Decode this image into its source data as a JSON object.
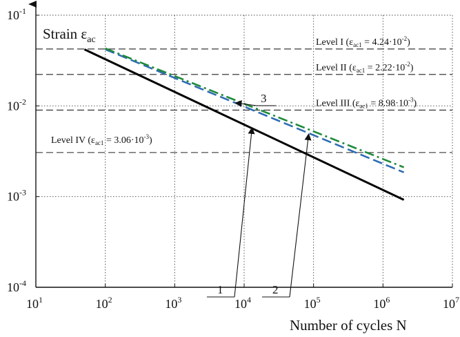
{
  "chart_data": {
    "type": "line",
    "x_scale": "log",
    "y_scale": "log",
    "xlim": [
      10,
      10000000
    ],
    "ylim": [
      0.0001,
      0.1
    ],
    "grid": true,
    "ylabel": {
      "main": "Strain ε",
      "sub": "ac"
    },
    "xlabel": "Number of cycles N",
    "x_ticks": [
      {
        "base": "10",
        "exp": "1",
        "value": 10
      },
      {
        "base": "10",
        "exp": "2",
        "value": 100
      },
      {
        "base": "10",
        "exp": "3",
        "value": 1000
      },
      {
        "base": "10",
        "exp": "4",
        "value": 10000
      },
      {
        "base": "10",
        "exp": "5",
        "value": 100000
      },
      {
        "base": "10",
        "exp": "6",
        "value": 1000000
      },
      {
        "base": "10",
        "exp": "7",
        "value": 10000000
      }
    ],
    "y_ticks": [
      {
        "base": "10",
        "exp": "-1",
        "value": 0.1
      },
      {
        "base": "10",
        "exp": "-2",
        "value": 0.01
      },
      {
        "base": "10",
        "exp": "-3",
        "value": 0.001
      },
      {
        "base": "10",
        "exp": "-4",
        "value": 0.0001
      }
    ],
    "series": [
      {
        "callout": "1",
        "color": "#000000",
        "style": "solid",
        "x": [
          50,
          2000000
        ],
        "y": [
          0.042,
          0.00092
        ]
      },
      {
        "callout": "2",
        "color": "#2e6db4",
        "style": "dashed",
        "x": [
          100,
          2000000
        ],
        "y": [
          0.042,
          0.00185
        ]
      },
      {
        "callout": "3",
        "color": "#1e8a3a",
        "style": "dashdot",
        "x": [
          100,
          2000000
        ],
        "y": [
          0.043,
          0.0021
        ]
      }
    ],
    "levels": [
      {
        "name": "Level I",
        "value": 0.0424,
        "label_main": "Level I (ε",
        "label_sub": "ac1",
        "label_eq": " = 4.24·10",
        "label_exp": "-2",
        "label_close": ")"
      },
      {
        "name": "Level II",
        "value": 0.0222,
        "label_main": "Level II (ε",
        "label_sub": "ac1",
        "label_eq": " = 2.22·10",
        "label_exp": "-2",
        "label_close": ")"
      },
      {
        "name": "Level III",
        "value": 0.00898,
        "label_main": "Level III (ε",
        "label_sub": "ac1",
        "label_eq": " = 8.98·10",
        "label_exp": "-3",
        "label_close": ")"
      },
      {
        "name": "Level IV",
        "value": 0.00306,
        "label_main": "Level IV (ε",
        "label_sub": "ac1",
        "label_eq": " = 3.06·10",
        "label_exp": "-3",
        "label_close": ")"
      }
    ],
    "callouts": [
      {
        "label": "1",
        "target_x": 13000,
        "target_y": 0.00575
      },
      {
        "label": "2",
        "target_x": 85000,
        "target_y": 0.0049
      },
      {
        "label": "3",
        "target_x": 7500,
        "target_y": 0.0108
      }
    ]
  }
}
